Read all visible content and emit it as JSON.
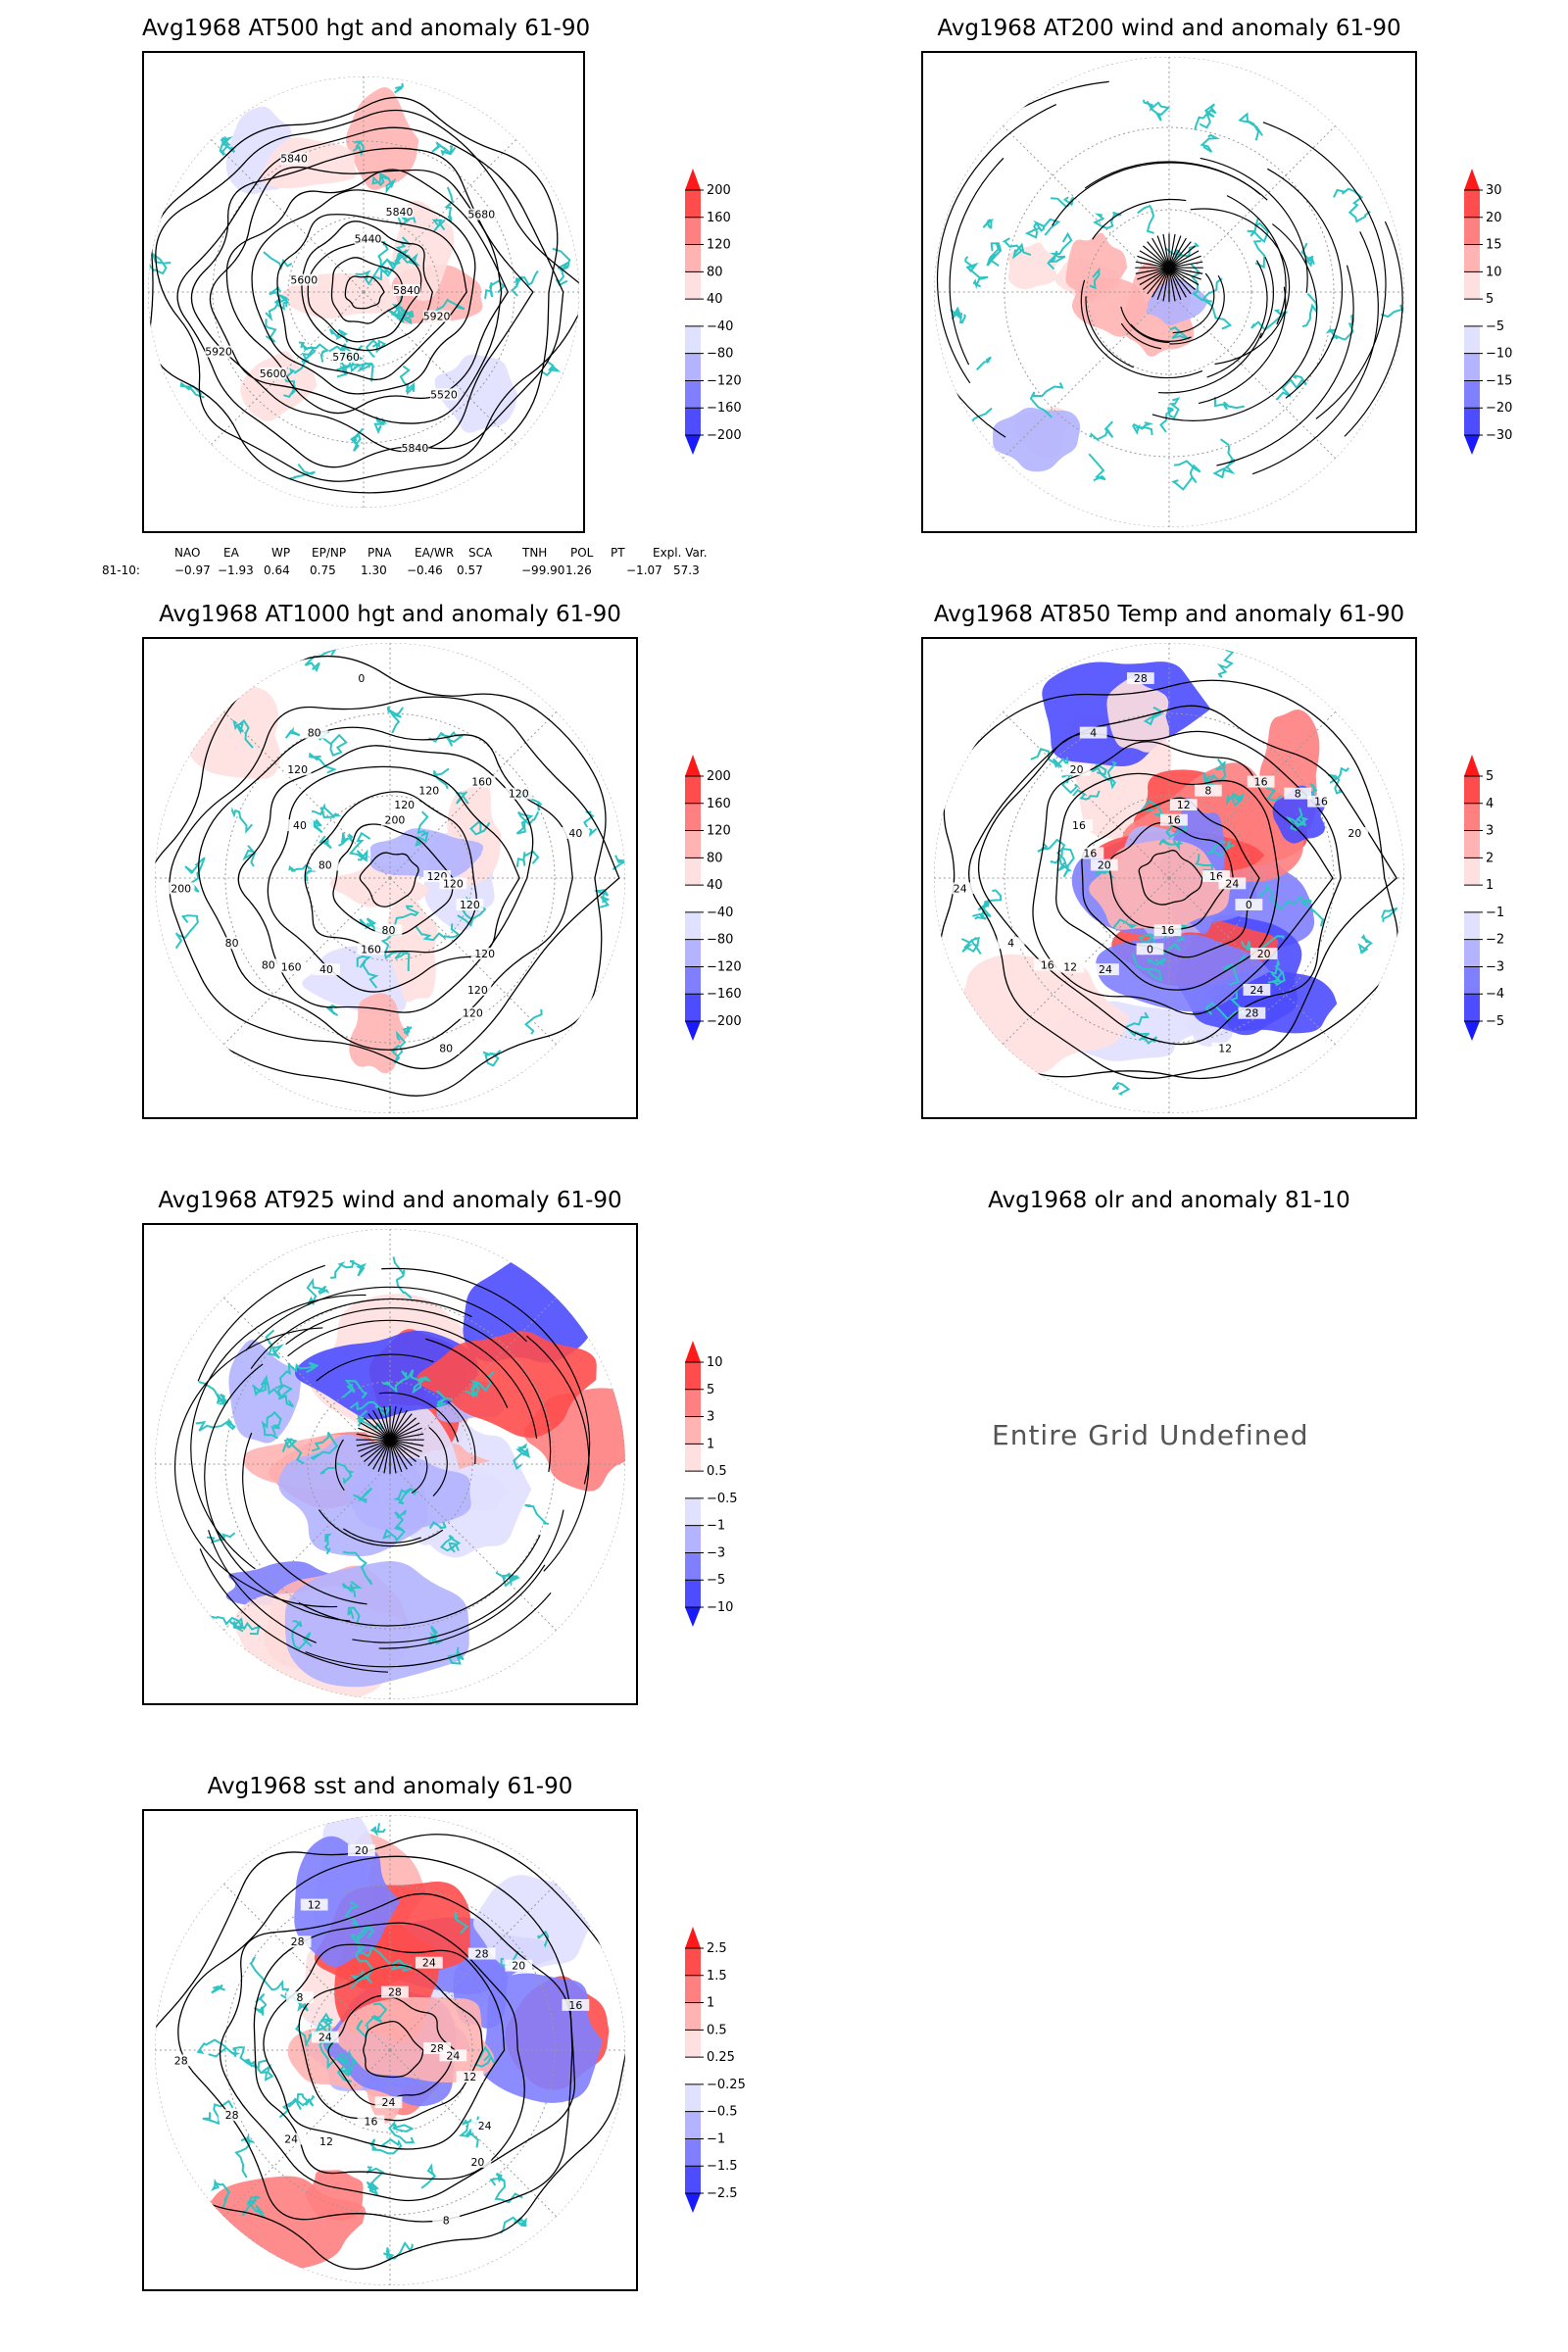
{
  "panels": [
    {
      "id": "p1",
      "title": "Avg1968 AT500 hgt and anomaly 61-90",
      "field": "hgt500",
      "contour_labels": [
        "5840",
        "5600",
        "5440",
        "5520",
        "5600",
        "5680",
        "5760",
        "5840",
        "5920",
        "5920",
        "5840",
        "5840"
      ],
      "colorbar": {
        "labels": [
          "200",
          "160",
          "120",
          "80",
          "40",
          "−40",
          "−80",
          "−120",
          "−160",
          "−200"
        ]
      }
    },
    {
      "id": "p2",
      "title": "Avg1968 AT200 wind and anomaly 61-90",
      "field": "wind200",
      "contour_labels": [],
      "colorbar": {
        "labels": [
          "30",
          "20",
          "15",
          "10",
          "5",
          "−5",
          "−10",
          "−15",
          "−20",
          "−30"
        ]
      }
    },
    {
      "id": "p3",
      "title": "Avg1968 AT1000 hgt and anomaly 61-90",
      "field": "hgt1000",
      "contour_labels": [
        "120",
        "160",
        "200",
        "120",
        "80",
        "120",
        "160",
        "80",
        "120",
        "80",
        "120",
        "80",
        "40",
        "40",
        "40",
        "0",
        "120",
        "200",
        "160",
        "80",
        "120",
        "120",
        "80",
        "120",
        "120"
      ],
      "colorbar": {
        "labels": [
          "200",
          "160",
          "120",
          "80",
          "40",
          "−40",
          "−80",
          "−120",
          "−160",
          "−200"
        ]
      }
    },
    {
      "id": "p4",
      "title": "Avg1968 AT850 Temp and anomaly 61-90",
      "field": "temp850",
      "contour_labels": [
        "16",
        "12",
        "16",
        "24",
        "20",
        "8",
        "0",
        "4",
        "0",
        "4",
        "8",
        "12",
        "16",
        "20",
        "24",
        "28",
        "20",
        "24",
        "16",
        "16",
        "20",
        "24",
        "16",
        "12",
        "28",
        "16",
        "16"
      ],
      "colorbar": {
        "labels": [
          "5",
          "4",
          "3",
          "2",
          "1",
          "−1",
          "−2",
          "−3",
          "−4",
          "−5"
        ]
      }
    },
    {
      "id": "p5",
      "title": "Avg1968 AT925 wind and anomaly 61-90",
      "field": "wind925",
      "contour_labels": [],
      "colorbar": {
        "labels": [
          "10",
          "5",
          "3",
          "1",
          "0.5",
          "−0.5",
          "−1",
          "−3",
          "−5",
          "−10"
        ]
      }
    },
    {
      "id": "p6",
      "title": "Avg1968 olr and anomaly 81-10",
      "field": "olr",
      "message": "Entire Grid Undefined"
    },
    {
      "id": "p7",
      "title": "Avg1968 sst and anomaly 61-90",
      "field": "sst",
      "contour_labels": [
        "28",
        "24",
        "28",
        "20",
        "24",
        "20",
        "16",
        "12",
        "12",
        "28",
        "24",
        "8",
        "8",
        "16",
        "12",
        "20",
        "24",
        "28",
        "28",
        "24",
        "28",
        "24"
      ],
      "colorbar": {
        "labels": [
          "2.5",
          "1.5",
          "1",
          "0.5",
          "0.25",
          "−0.25",
          "−0.5",
          "−1",
          "−1.5",
          "−2.5"
        ]
      }
    }
  ],
  "teleconnection_indices": {
    "headers": [
      "NAO",
      "EA",
      "WP",
      "EP/NP",
      "PNA",
      "EA/WR",
      "SCA",
      "TNH",
      "POL",
      "PT",
      "Expl. Var."
    ],
    "row_label": "81-10:",
    "values": [
      "−0.97",
      "−1.93",
      "0.64",
      "0.75",
      "1.30",
      "−0.46",
      "0.57",
      "−99.90",
      "1.26",
      "−1.07",
      "57.3"
    ]
  },
  "colors": {
    "coastline": "#2ec4c4",
    "anomaly_pos": [
      "#ff1a1a",
      "#ff4d4d",
      "#ff8080",
      "#ffb3b3",
      "#ffe0e0"
    ],
    "anomaly_neg": [
      "#e0e0ff",
      "#b3b3ff",
      "#8080ff",
      "#4d4dff",
      "#1a1aff"
    ],
    "contour": "#000000",
    "grid": "#999999"
  }
}
